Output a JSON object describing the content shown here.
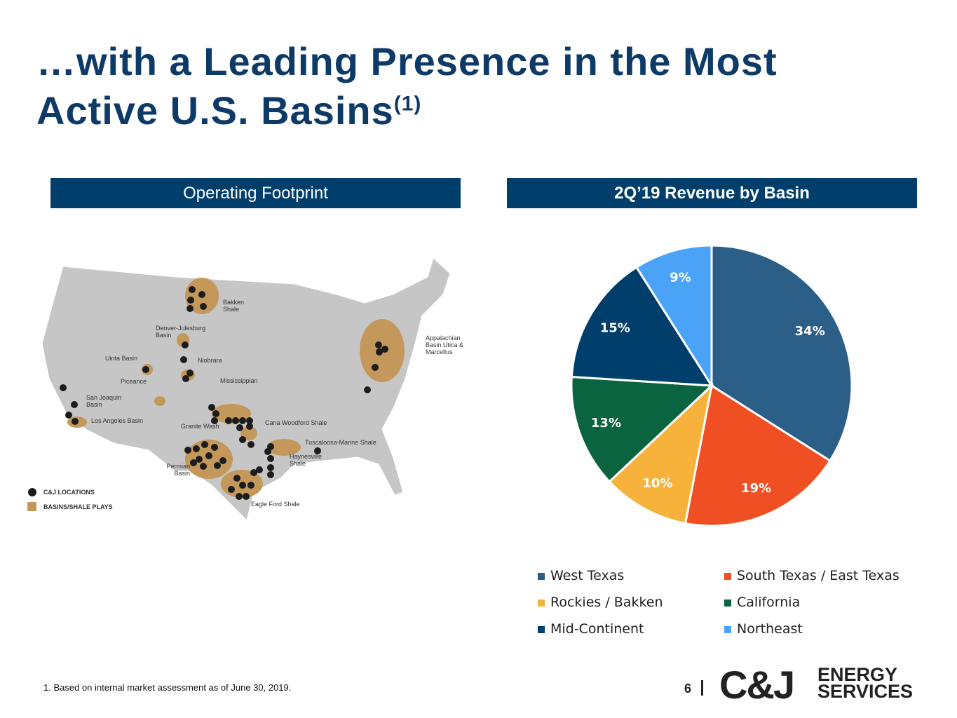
{
  "header": {
    "title_line1": "…with a Leading Presence in the Most",
    "title_line2": "Active U.S. Basins",
    "title_superscript": "(1)"
  },
  "left_panel": {
    "heading": "Operating Footprint",
    "map_labels": [
      "Bakken Shale",
      "Denver-Julesburg Basin",
      "Appalachian Basin Utica & Marcellus",
      "Uinta Basin",
      "Niobrara",
      "Piceance",
      "Mississippian",
      "San Joaquin Basin",
      "Los Angeles Basin",
      "Granite Wash",
      "Cana Woodford Shale",
      "Tuscaloosa-Marine Shale",
      "Haynesville Shale",
      "Permian Basin",
      "Eagle Ford Shale"
    ],
    "map_legend": [
      "C&J LOCATIONS",
      "BASINS/SHALE PLAYS"
    ]
  },
  "chart_data": {
    "type": "pie",
    "title": "2Q’19 Revenue by Basin",
    "categories": [
      "West Texas",
      "South Texas / East Texas",
      "Rockies / Bakken",
      "California",
      "Mid-Continent",
      "Northeast"
    ],
    "values": [
      34,
      19,
      10,
      13,
      15,
      9
    ],
    "value_labels": [
      "34%",
      "19%",
      "10%",
      "13%",
      "15%",
      "9%"
    ],
    "colors": [
      "#2b5f88",
      "#f04e23",
      "#f7b23b",
      "#0b6440",
      "#003f6b",
      "#4aa3f6"
    ]
  },
  "footer": {
    "footnote": "1. Based on internal market assessment as of June 30, 2019.",
    "page_number": "6",
    "logo_main": "C&J",
    "logo_line1": "ENERGY",
    "logo_line2": "SERVICES"
  }
}
